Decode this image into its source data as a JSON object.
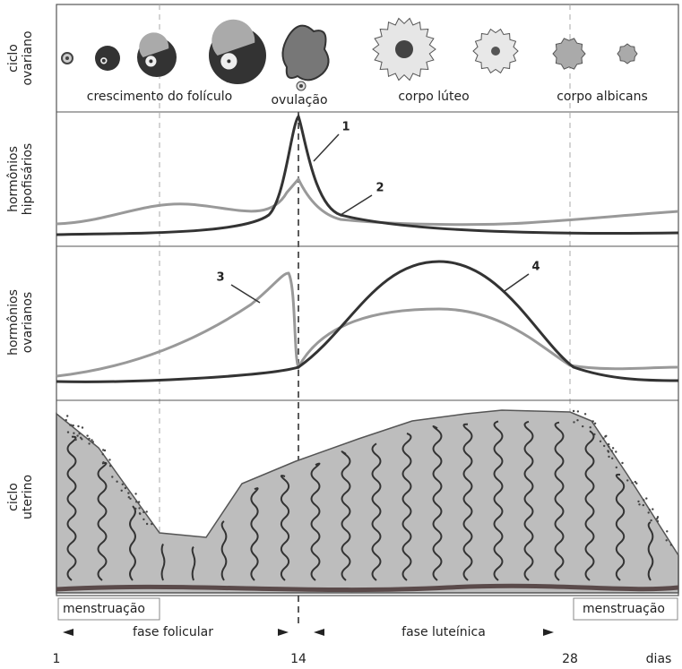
{
  "panels": [
    {
      "label": [
        "ciclo",
        "ovariano"
      ]
    },
    {
      "label": [
        "hormônios",
        "hipofisários"
      ]
    },
    {
      "label": [
        "hormônios",
        "ovarianos"
      ]
    },
    {
      "label": [
        "ciclo",
        "uterino"
      ]
    }
  ],
  "ovarian_stages": [
    "crescimento do folículo",
    "ovulação",
    "corpo lúteo",
    "corpo albicans"
  ],
  "curve_labels": [
    "1",
    "2",
    "3",
    "4"
  ],
  "uterine_labels": {
    "menstruation_left": "menstruação",
    "menstruation_right": "menstruação"
  },
  "phases": [
    "fase folicular",
    "fase luteínica"
  ],
  "days": [
    "1",
    "14",
    "28"
  ],
  "days_unit": "dias"
}
